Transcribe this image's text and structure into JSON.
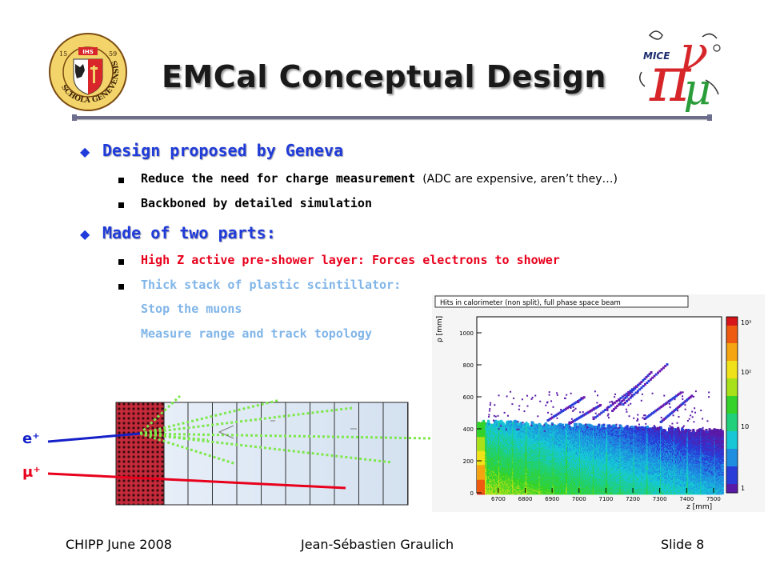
{
  "slide": {
    "title": "EMCal Conceptual Design",
    "bullets": [
      {
        "text": "Design proposed by Geneva",
        "subs": [
          {
            "bold": "Reduce the need for charge measurement",
            "aside": "(ADC are expensive, aren’t they…)"
          },
          {
            "bold": "Backboned by detailed simulation",
            "aside": ""
          }
        ]
      },
      {
        "text": "Made of two parts:",
        "subs": [
          {
            "bold": "High Z active pre-shower layer: Forces electrons to shower",
            "aside": ""
          },
          {
            "bold": "Thick stack of plastic scintillator:",
            "aside": ""
          }
        ],
        "continuation": [
          "Stop the muons",
          "Measure range and track topology"
        ]
      }
    ]
  },
  "logos": {
    "left_ring_text": "SCHOLA GENEVENSIS",
    "left_years": [
      "15",
      "59"
    ],
    "left_banner": "IHS",
    "right_text": "MICE"
  },
  "diagram": {
    "labels": [
      "e⁺",
      "μ⁺"
    ],
    "colors": {
      "electron": "#1520c8",
      "muon": "#e8001c",
      "shower": "#7de84a",
      "preshower": "#c42a3a"
    }
  },
  "chart_data": {
    "type": "heatmap",
    "title": "Hits in calorimeter (non split), full phase space beam",
    "xlabel": "z [mm]",
    "ylabel": "ρ [mm]",
    "xlim": [
      6620,
      7530
    ],
    "ylim": [
      0,
      1100
    ],
    "x_ticks": [
      "6700",
      "6800",
      "6900",
      "7000",
      "7100",
      "7200",
      "7300",
      "7400",
      "7500"
    ],
    "y_ticks": [
      "0",
      "200",
      "400",
      "600",
      "800",
      "1000"
    ],
    "colorbar_ticks": [
      "1",
      "10",
      "10²",
      "10³"
    ],
    "colorbar_scale": "log"
  },
  "footer": {
    "left": "CHIPP June 2008",
    "center": "Jean-Sébastien Graulich",
    "right": "Slide 8"
  }
}
